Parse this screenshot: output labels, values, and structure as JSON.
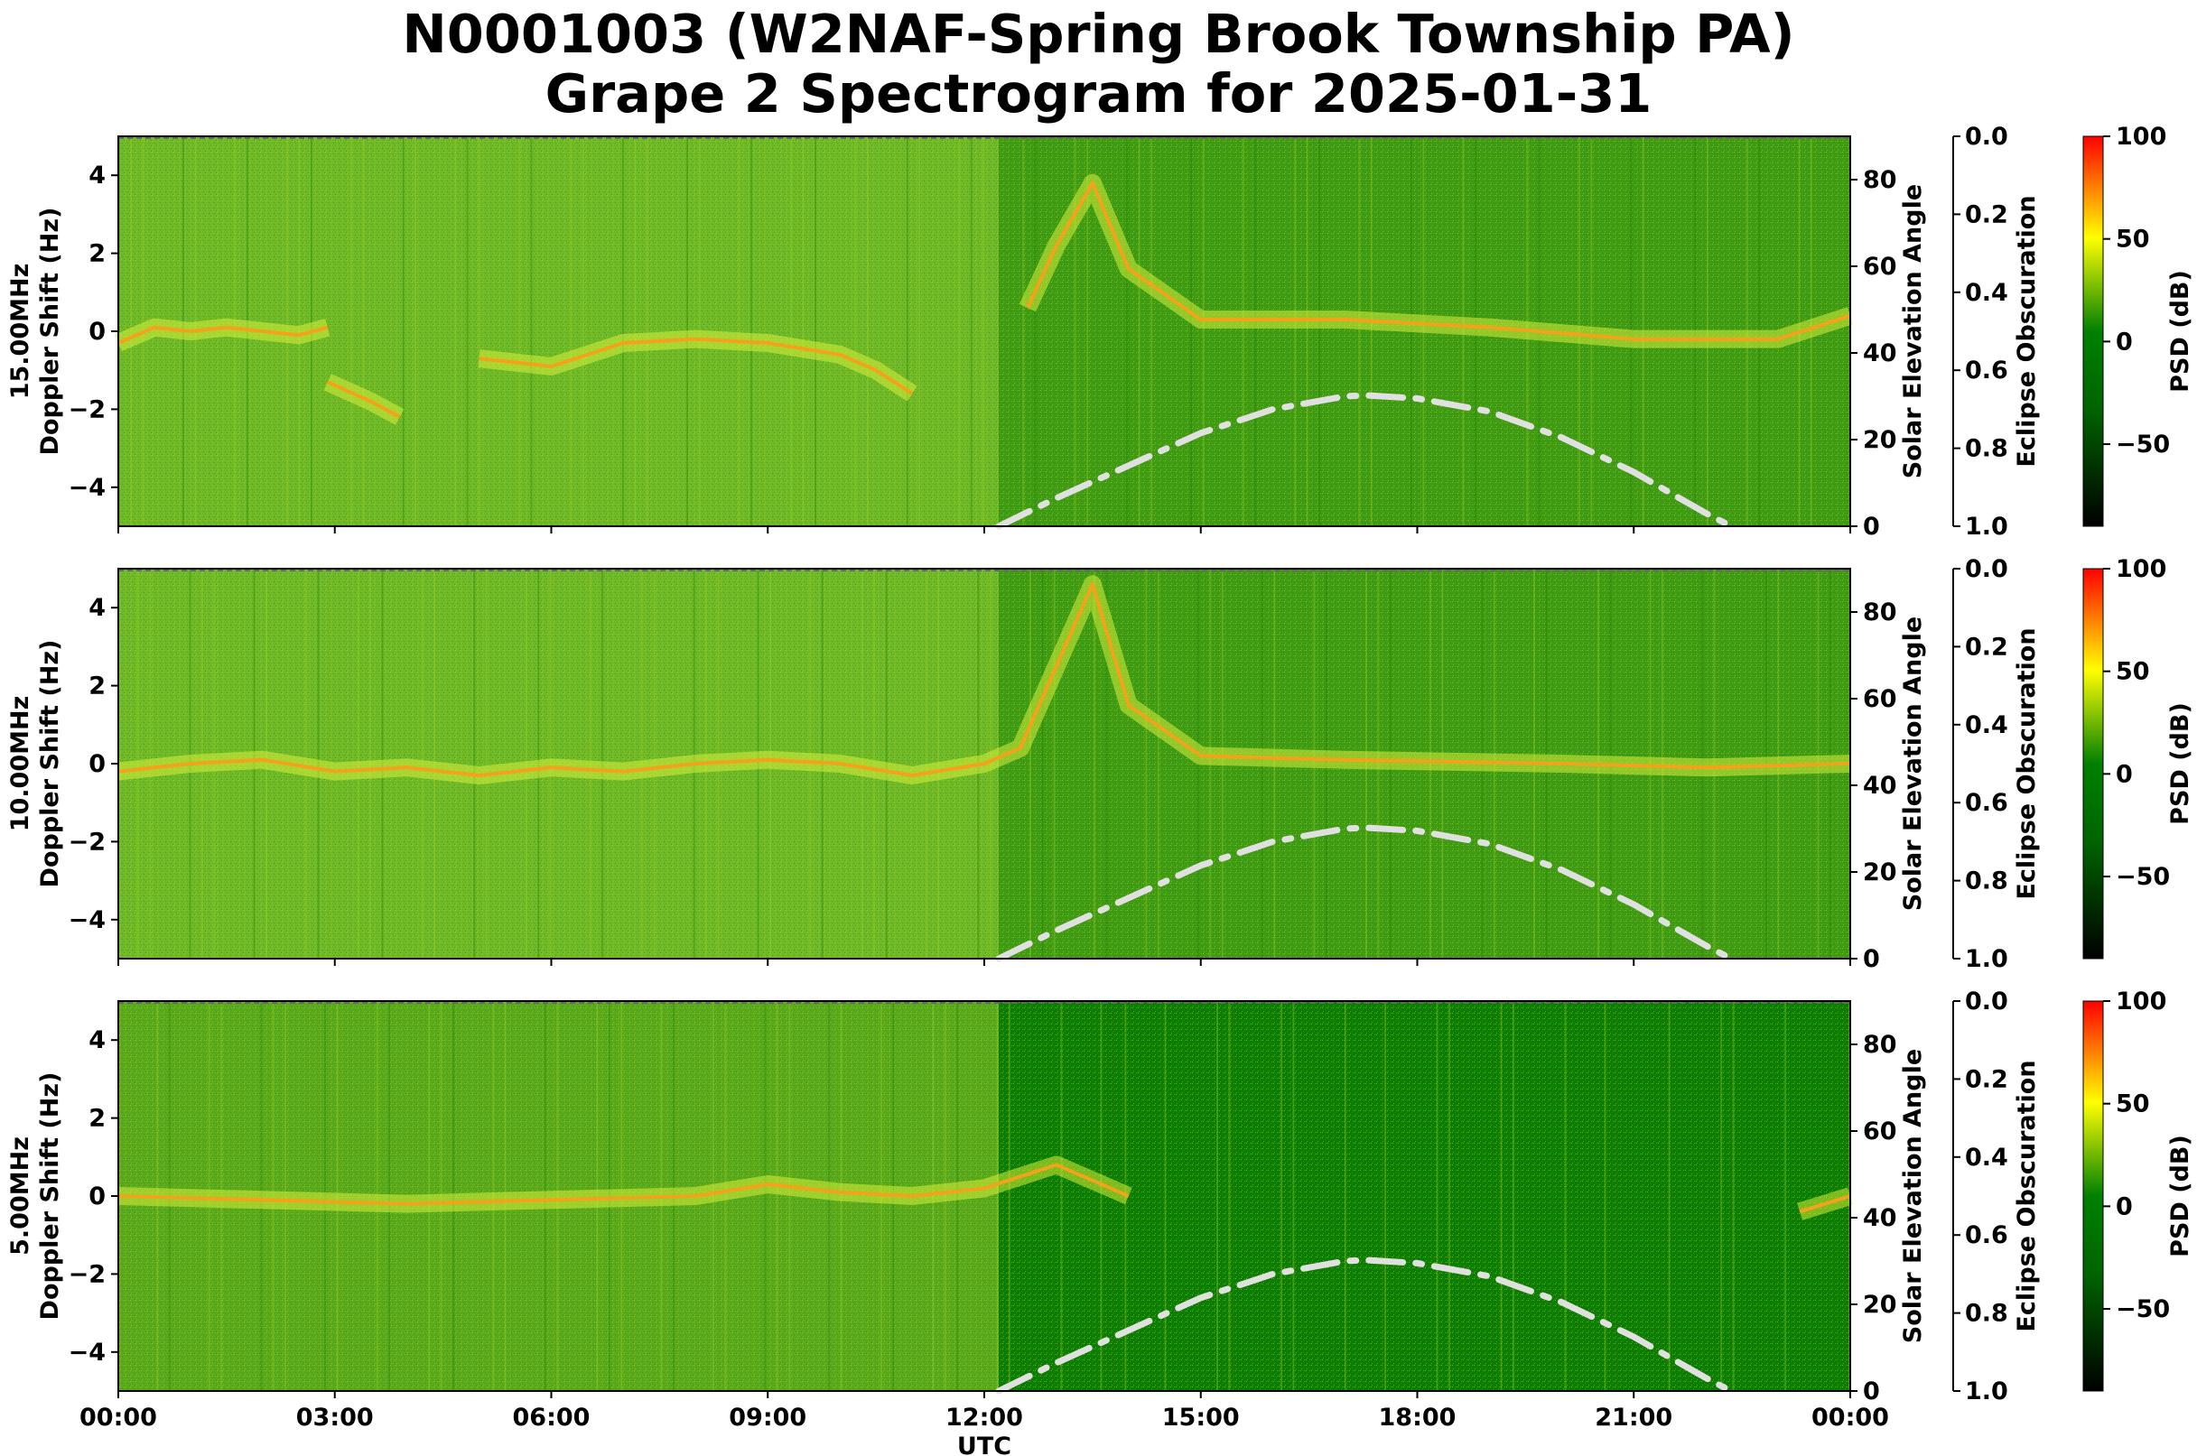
{
  "title_line1": "N0001003 (W2NAF-Spring Brook Township PA)",
  "title_line2": "Grape 2 Spectrogram for 2025-01-31",
  "xlabel": "UTC",
  "x_ticks": [
    "00:00",
    "03:00",
    "06:00",
    "09:00",
    "12:00",
    "15:00",
    "18:00",
    "21:00",
    "00:00"
  ],
  "colors": {
    "low": "#000000",
    "mid": "#008000",
    "high1": "#ffff00",
    "high2": "#ff0000",
    "sun_curve": "#e0e0e0"
  },
  "chart_data": [
    {
      "type": "heatmap",
      "panel": "15 MHz",
      "ylabel_line1": "15.00MHz",
      "ylabel_line2": "Doppler Shift (Hz)",
      "ylim": [
        -5,
        5
      ],
      "y_ticks": [
        "4",
        "2",
        "0",
        "−2",
        "−4"
      ],
      "xlim_hours": [
        0,
        24
      ],
      "traces": [
        {
          "name": "",
          "points": [
            [
              0,
              -0.3
            ],
            [
              0.5,
              0.1
            ],
            [
              1,
              0
            ],
            [
              1.5,
              0.1
            ],
            [
              2,
              0
            ],
            [
              2.5,
              -0.1
            ],
            [
              2.9,
              0.1
            ]
          ]
        },
        {
          "name": "",
          "points": [
            [
              2.9,
              -1.3
            ],
            [
              3.5,
              -1.8
            ],
            [
              3.9,
              -2.2
            ]
          ]
        },
        {
          "name": "",
          "points": [
            [
              5,
              -0.7
            ],
            [
              6,
              -0.9
            ],
            [
              7,
              -0.3
            ],
            [
              8,
              -0.2
            ],
            [
              9,
              -0.3
            ],
            [
              10,
              -0.6
            ],
            [
              10.5,
              -1.0
            ],
            [
              11,
              -1.6
            ]
          ]
        },
        {
          "name": "",
          "points": [
            [
              12.6,
              0.6
            ],
            [
              13,
              2.2
            ],
            [
              13.5,
              3.8
            ],
            [
              14,
              1.6
            ],
            [
              15,
              0.3
            ],
            [
              17,
              0.3
            ],
            [
              19,
              0.1
            ],
            [
              21,
              -0.2
            ],
            [
              23,
              -0.2
            ],
            [
              24,
              0.4
            ]
          ]
        }
      ],
      "solar_elevation": {
        "axis_label": "Solar Elevation Angle",
        "ylim": [
          0,
          90
        ],
        "ticks": [
          "0",
          "20",
          "40",
          "60",
          "80"
        ],
        "points": [
          [
            12.2,
            0
          ],
          [
            13,
            6.5
          ],
          [
            14,
            14
          ],
          [
            15,
            21.5
          ],
          [
            16,
            27
          ],
          [
            17,
            30
          ],
          [
            17.3,
            30.2
          ],
          [
            18,
            29.5
          ],
          [
            19,
            26.5
          ],
          [
            20,
            20.5
          ],
          [
            21,
            12.5
          ],
          [
            22,
            3
          ],
          [
            22.35,
            0
          ]
        ]
      },
      "eclipse_obscuration": {
        "axis_label": "Eclipse Obscuration",
        "ylim": [
          1.0,
          0.0
        ],
        "ticks": [
          "0.0",
          "0.2",
          "0.4",
          "0.6",
          "0.8",
          "1.0"
        ]
      },
      "colorbar": {
        "label": "PSD (dB)",
        "range": [
          -90,
          100
        ],
        "ticks": [
          "100",
          "50",
          "0",
          "−50"
        ]
      }
    },
    {
      "type": "heatmap",
      "panel": "10 MHz",
      "ylabel_line1": "10.00MHz",
      "ylabel_line2": "Doppler Shift (Hz)",
      "ylim": [
        -5,
        5
      ],
      "y_ticks": [
        "4",
        "2",
        "0",
        "−2",
        "−4"
      ],
      "xlim_hours": [
        0,
        24
      ],
      "traces": [
        {
          "name": "",
          "points": [
            [
              0,
              -0.2
            ],
            [
              1,
              0
            ],
            [
              2,
              0.1
            ],
            [
              3,
              -0.2
            ],
            [
              4,
              -0.1
            ],
            [
              5,
              -0.3
            ],
            [
              6,
              -0.1
            ],
            [
              7,
              -0.2
            ],
            [
              8,
              0
            ],
            [
              9,
              0.1
            ],
            [
              10,
              0
            ],
            [
              11,
              -0.3
            ],
            [
              12,
              0
            ],
            [
              12.5,
              0.4
            ],
            [
              13,
              2.5
            ],
            [
              13.5,
              4.6
            ],
            [
              14,
              1.5
            ],
            [
              15,
              0.2
            ],
            [
              17,
              0.1
            ],
            [
              20,
              0
            ],
            [
              22,
              -0.1
            ],
            [
              24,
              0
            ]
          ]
        }
      ],
      "solar_elevation": {
        "axis_label": "Solar Elevation Angle",
        "ylim": [
          0,
          90
        ],
        "ticks": [
          "0",
          "20",
          "40",
          "60",
          "80"
        ],
        "points": [
          [
            12.2,
            0
          ],
          [
            13,
            6.5
          ],
          [
            14,
            14
          ],
          [
            15,
            21.5
          ],
          [
            16,
            27
          ],
          [
            17,
            30
          ],
          [
            17.3,
            30.2
          ],
          [
            18,
            29.5
          ],
          [
            19,
            26.5
          ],
          [
            20,
            20.5
          ],
          [
            21,
            12.5
          ],
          [
            22,
            3
          ],
          [
            22.35,
            0
          ]
        ]
      },
      "eclipse_obscuration": {
        "axis_label": "Eclipse Obscuration",
        "ylim": [
          1.0,
          0.0
        ],
        "ticks": [
          "0.0",
          "0.2",
          "0.4",
          "0.6",
          "0.8",
          "1.0"
        ]
      },
      "colorbar": {
        "label": "PSD (dB)",
        "range": [
          -90,
          100
        ],
        "ticks": [
          "100",
          "50",
          "0",
          "−50"
        ]
      }
    },
    {
      "type": "heatmap",
      "panel": "5 MHz",
      "ylabel_line1": "5.00MHz",
      "ylabel_line2": "Doppler Shift (Hz)",
      "ylim": [
        -5,
        5
      ],
      "y_ticks": [
        "4",
        "2",
        "0",
        "−2",
        "−4"
      ],
      "xlim_hours": [
        0,
        24
      ],
      "traces": [
        {
          "name": "",
          "points": [
            [
              0,
              0
            ],
            [
              2,
              -0.1
            ],
            [
              4,
              -0.2
            ],
            [
              6,
              -0.1
            ],
            [
              8,
              0
            ],
            [
              9,
              0.3
            ],
            [
              10,
              0.1
            ],
            [
              11,
              0
            ],
            [
              12,
              0.2
            ],
            [
              13,
              0.8
            ],
            [
              13.5,
              0.4
            ],
            [
              14,
              0
            ]
          ]
        },
        {
          "name": "",
          "points": [
            [
              23.3,
              -0.4
            ],
            [
              24,
              0
            ]
          ]
        }
      ],
      "solar_elevation": {
        "axis_label": "Solar Elevation Angle",
        "ylim": [
          0,
          90
        ],
        "ticks": [
          "0",
          "20",
          "40",
          "60",
          "80"
        ],
        "points": [
          [
            12.2,
            0
          ],
          [
            13,
            6.5
          ],
          [
            14,
            14
          ],
          [
            15,
            21.5
          ],
          [
            16,
            27
          ],
          [
            17,
            30
          ],
          [
            17.3,
            30.2
          ],
          [
            18,
            29.5
          ],
          [
            19,
            26.5
          ],
          [
            20,
            20.5
          ],
          [
            21,
            12.5
          ],
          [
            22,
            3
          ],
          [
            22.35,
            0
          ]
        ]
      },
      "eclipse_obscuration": {
        "axis_label": "Eclipse Obscuration",
        "ylim": [
          1.0,
          0.0
        ],
        "ticks": [
          "0.0",
          "0.2",
          "0.4",
          "0.6",
          "0.8",
          "1.0"
        ]
      },
      "colorbar": {
        "label": "PSD (dB)",
        "range": [
          -90,
          100
        ],
        "ticks": [
          "100",
          "50",
          "0",
          "−50"
        ]
      }
    }
  ]
}
